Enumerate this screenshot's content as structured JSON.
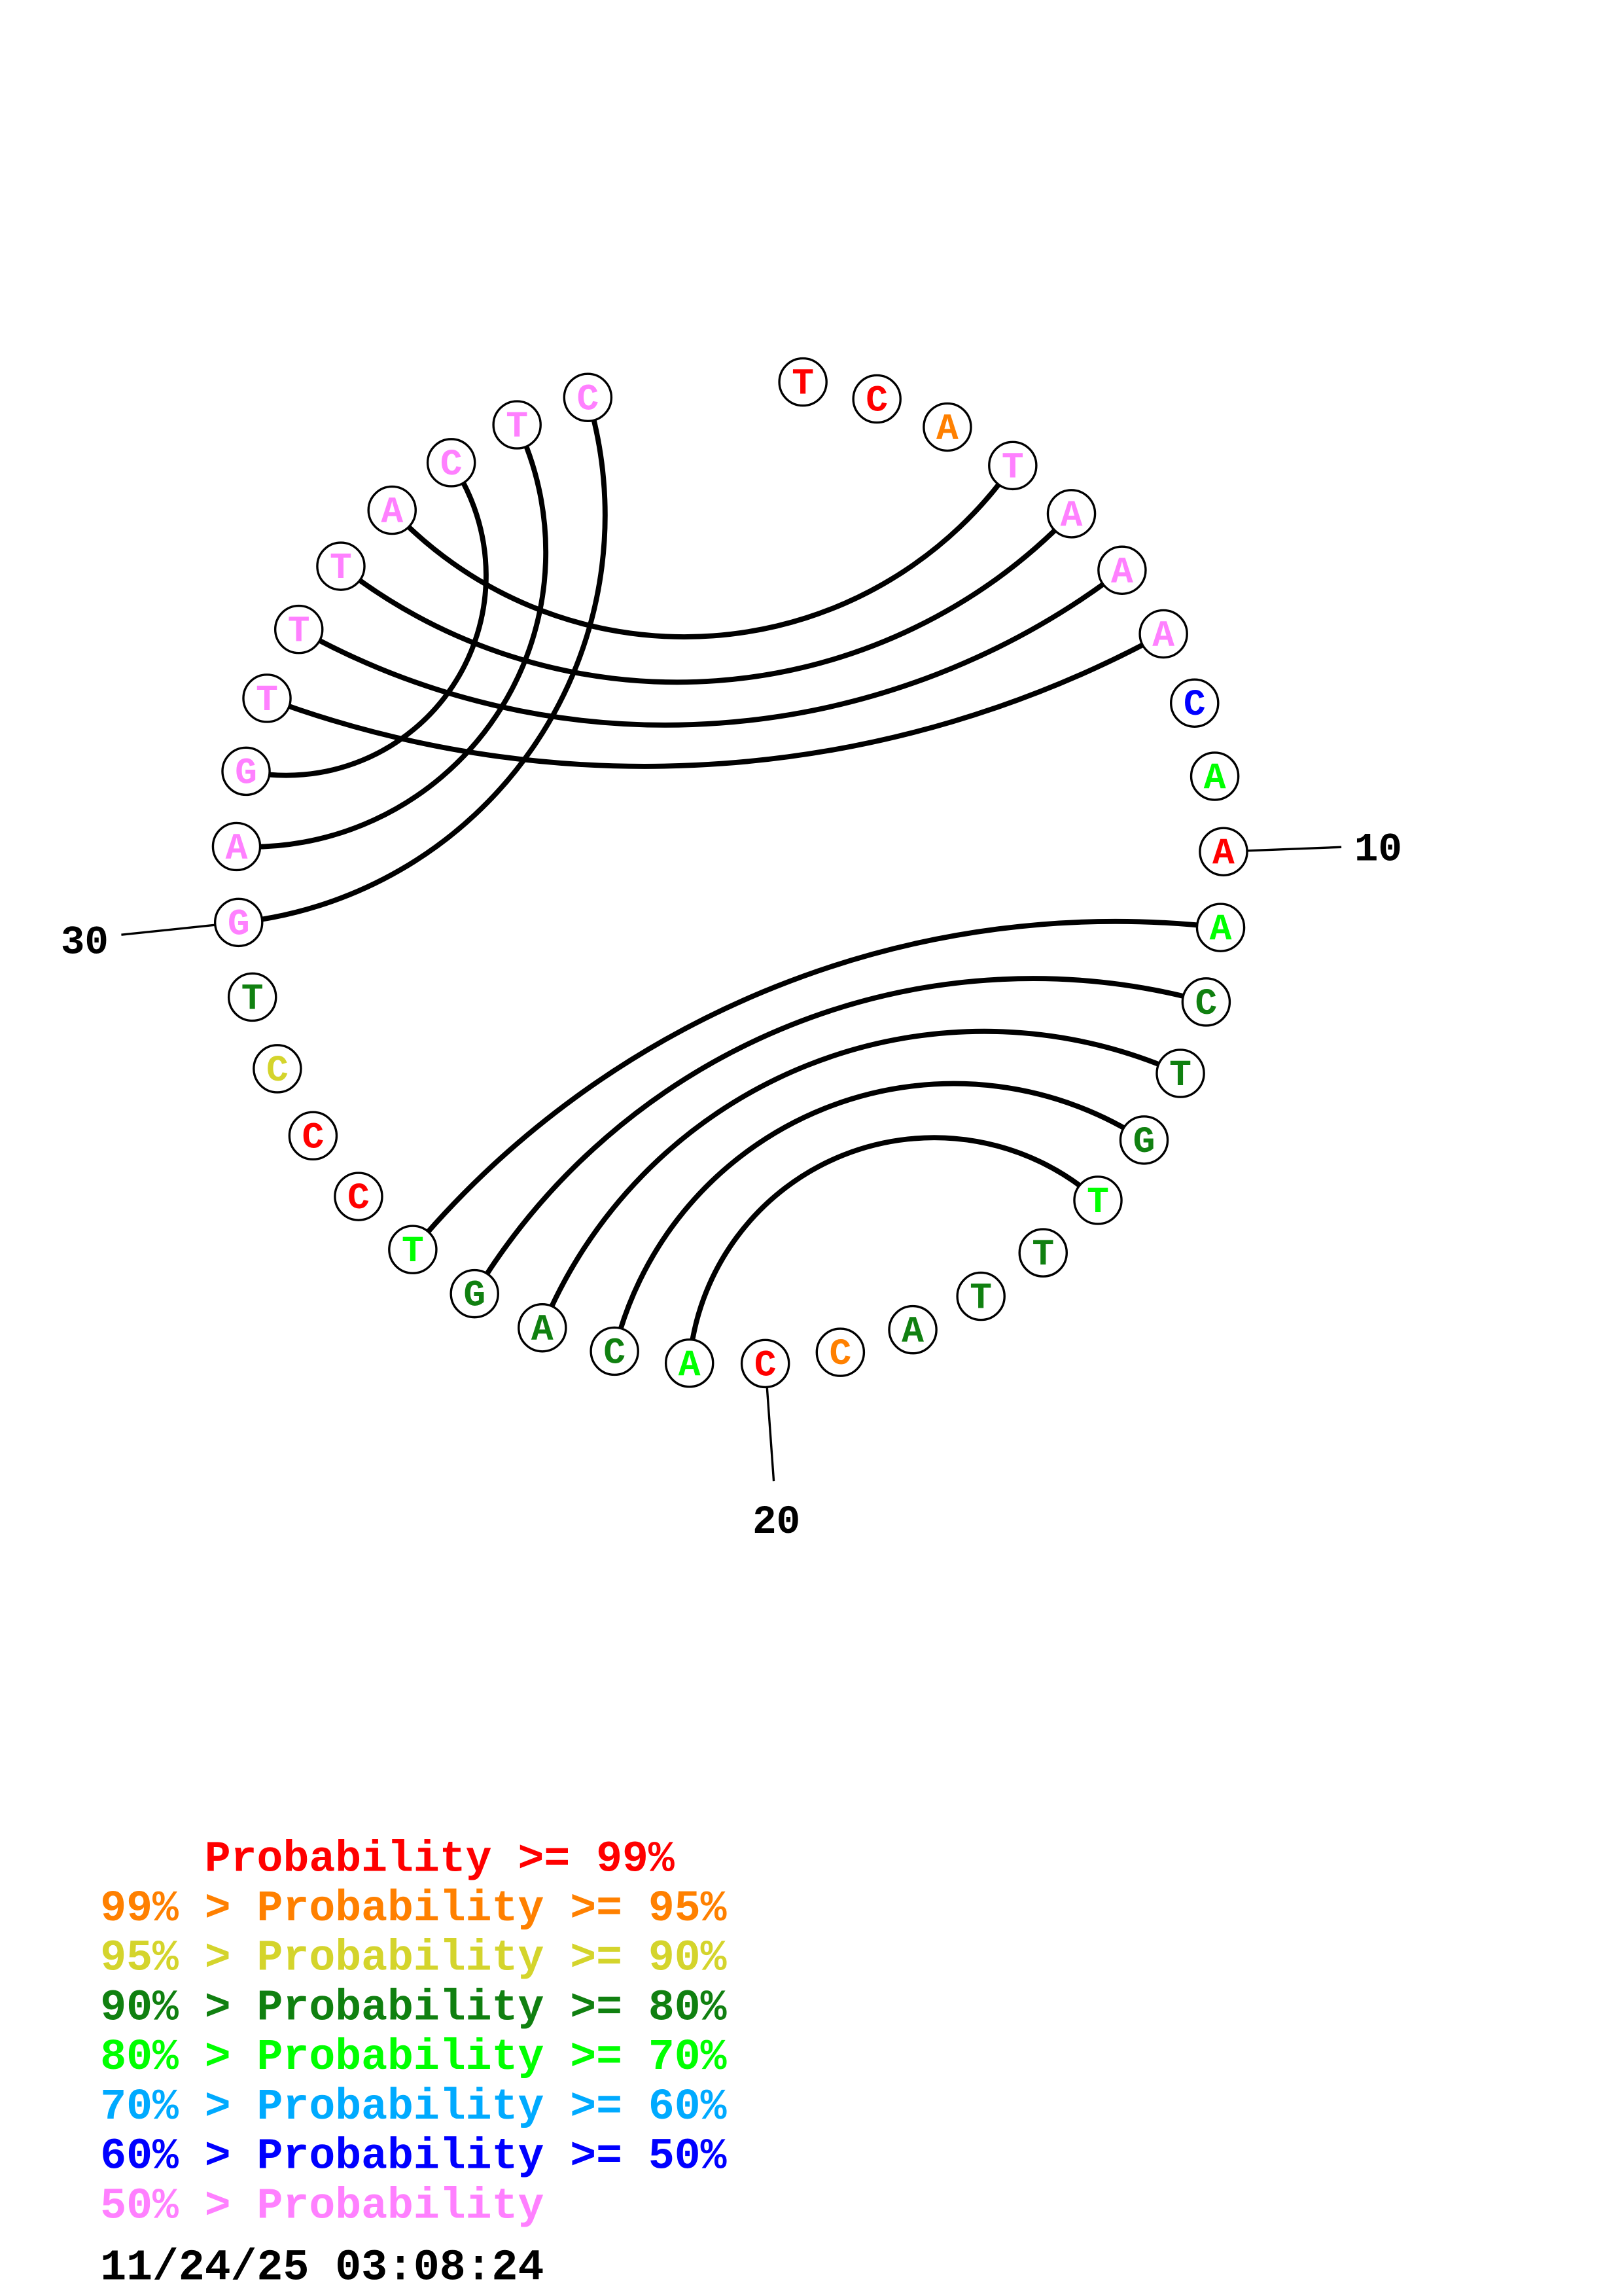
{
  "colors": {
    "p99": "#ff0000",
    "p95": "#ff8000",
    "p90": "#d4d42c",
    "p80": "#108010",
    "p70": "#00ff00",
    "p60": "#00aaff",
    "p50": "#0000ff",
    "plow": "#ff80ff"
  },
  "sequence": [
    {
      "base": "T",
      "prob": "p99"
    },
    {
      "base": "C",
      "prob": "p99"
    },
    {
      "base": "A",
      "prob": "p95"
    },
    {
      "base": "T",
      "prob": "plow"
    },
    {
      "base": "A",
      "prob": "plow"
    },
    {
      "base": "A",
      "prob": "plow"
    },
    {
      "base": "A",
      "prob": "plow"
    },
    {
      "base": "C",
      "prob": "p50"
    },
    {
      "base": "A",
      "prob": "p70"
    },
    {
      "base": "A",
      "prob": "p99"
    },
    {
      "base": "A",
      "prob": "p70"
    },
    {
      "base": "C",
      "prob": "p80"
    },
    {
      "base": "T",
      "prob": "p80"
    },
    {
      "base": "G",
      "prob": "p80"
    },
    {
      "base": "T",
      "prob": "p70"
    },
    {
      "base": "T",
      "prob": "p80"
    },
    {
      "base": "T",
      "prob": "p80"
    },
    {
      "base": "A",
      "prob": "p80"
    },
    {
      "base": "C",
      "prob": "p95"
    },
    {
      "base": "C",
      "prob": "p99"
    },
    {
      "base": "A",
      "prob": "p70"
    },
    {
      "base": "C",
      "prob": "p80"
    },
    {
      "base": "A",
      "prob": "p80"
    },
    {
      "base": "G",
      "prob": "p80"
    },
    {
      "base": "T",
      "prob": "p70"
    },
    {
      "base": "C",
      "prob": "p99"
    },
    {
      "base": "C",
      "prob": "p99"
    },
    {
      "base": "C",
      "prob": "p90"
    },
    {
      "base": "T",
      "prob": "p80"
    },
    {
      "base": "G",
      "prob": "plow"
    },
    {
      "base": "A",
      "prob": "plow"
    },
    {
      "base": "G",
      "prob": "plow"
    },
    {
      "base": "T",
      "prob": "plow"
    },
    {
      "base": "T",
      "prob": "plow"
    },
    {
      "base": "T",
      "prob": "plow"
    },
    {
      "base": "A",
      "prob": "plow"
    },
    {
      "base": "C",
      "prob": "plow"
    },
    {
      "base": "T",
      "prob": "plow"
    },
    {
      "base": "C",
      "prob": "plow"
    }
  ],
  "pairs": [
    [
      4,
      36
    ],
    [
      5,
      35
    ],
    [
      6,
      34
    ],
    [
      7,
      33
    ],
    [
      37,
      32
    ],
    [
      38,
      31
    ],
    [
      39,
      30
    ],
    [
      11,
      25
    ],
    [
      12,
      24
    ],
    [
      13,
      23
    ],
    [
      14,
      22
    ],
    [
      15,
      21
    ]
  ],
  "position_labels": [
    {
      "index": 10,
      "text": "10"
    },
    {
      "index": 20,
      "text": "20"
    },
    {
      "index": 30,
      "text": "30"
    }
  ],
  "legend": [
    {
      "text": "    Probability >= 99%",
      "color": "p99"
    },
    {
      "text": "99% > Probability >= 95%",
      "color": "p95"
    },
    {
      "text": "95% > Probability >= 90%",
      "color": "p90"
    },
    {
      "text": "90% > Probability >= 80%",
      "color": "p80"
    },
    {
      "text": "80% > Probability >= 70%",
      "color": "p70"
    },
    {
      "text": "70% > Probability >= 60%",
      "color": "p60"
    },
    {
      "text": "60% > Probability >= 50%",
      "color": "p50"
    },
    {
      "text": "50% > Probability",
      "color": "plow"
    }
  ],
  "timestamp": "11/24/25 03:08:24"
}
